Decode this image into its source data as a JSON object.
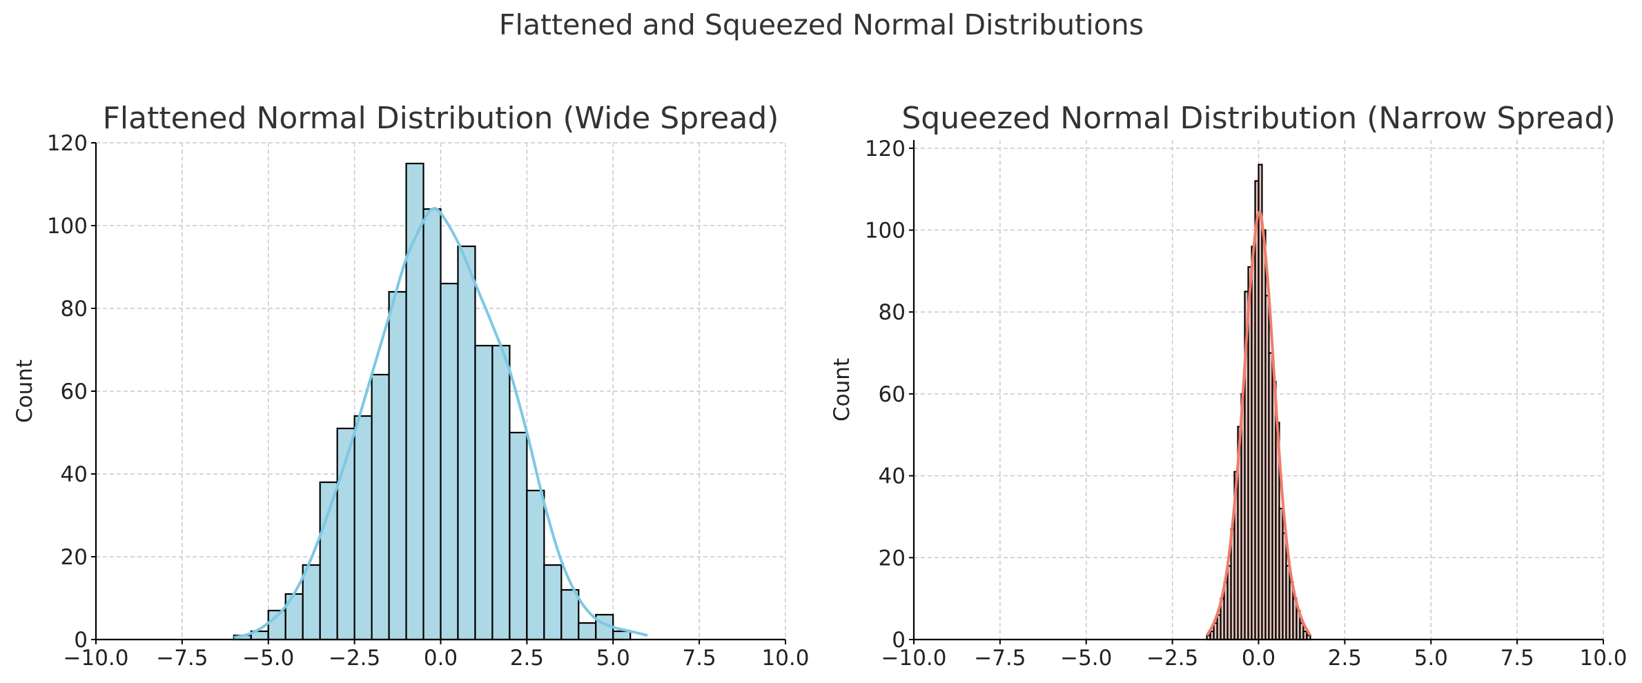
{
  "figure": {
    "suptitle": "Flattened and Squeezed Normal Distributions"
  },
  "chart_data": [
    {
      "type": "bar",
      "subtype": "histogram",
      "title": "Flattened Normal Distribution (Wide Spread)",
      "xlabel": "",
      "ylabel": "Count",
      "xlim": [
        -10,
        10
      ],
      "ylim": [
        0,
        120
      ],
      "xticks": [
        "−10.0",
        "−7.5",
        "−5.0",
        "−2.5",
        "0.0",
        "2.5",
        "5.0",
        "7.5",
        "10.0"
      ],
      "yticks": [
        "0",
        "20",
        "40",
        "60",
        "80",
        "100",
        "120"
      ],
      "grid": true,
      "bar_color": "#add8e6",
      "edge_color": "#000000",
      "kde_color": "#7ec8e3",
      "bins": [
        {
          "x0": -6.0,
          "x1": -5.5,
          "count": 1
        },
        {
          "x0": -5.5,
          "x1": -5.0,
          "count": 2
        },
        {
          "x0": -5.0,
          "x1": -4.5,
          "count": 7
        },
        {
          "x0": -4.5,
          "x1": -4.0,
          "count": 11
        },
        {
          "x0": -4.0,
          "x1": -3.5,
          "count": 18
        },
        {
          "x0": -3.5,
          "x1": -3.0,
          "count": 38
        },
        {
          "x0": -3.0,
          "x1": -2.5,
          "count": 51
        },
        {
          "x0": -2.5,
          "x1": -2.0,
          "count": 54
        },
        {
          "x0": -2.0,
          "x1": -1.5,
          "count": 64
        },
        {
          "x0": -1.5,
          "x1": -1.0,
          "count": 84
        },
        {
          "x0": -1.0,
          "x1": -0.5,
          "count": 115
        },
        {
          "x0": -0.5,
          "x1": 0.0,
          "count": 104
        },
        {
          "x0": 0.0,
          "x1": 0.5,
          "count": 86
        },
        {
          "x0": 0.5,
          "x1": 1.0,
          "count": 95
        },
        {
          "x0": 1.0,
          "x1": 1.5,
          "count": 71
        },
        {
          "x0": 1.5,
          "x1": 2.0,
          "count": 71
        },
        {
          "x0": 2.0,
          "x1": 2.5,
          "count": 50
        },
        {
          "x0": 2.5,
          "x1": 3.0,
          "count": 36
        },
        {
          "x0": 3.0,
          "x1": 3.5,
          "count": 18
        },
        {
          "x0": 3.5,
          "x1": 4.0,
          "count": 12
        },
        {
          "x0": 4.0,
          "x1": 4.5,
          "count": 4
        },
        {
          "x0": 4.5,
          "x1": 5.0,
          "count": 6
        },
        {
          "x0": 5.0,
          "x1": 5.5,
          "count": 2
        }
      ],
      "kde": {
        "x": [
          -6.0,
          -5.5,
          -5.0,
          -4.5,
          -4.0,
          -3.5,
          -3.0,
          -2.5,
          -2.0,
          -1.5,
          -1.0,
          -0.5,
          -0.25,
          0.0,
          0.5,
          1.0,
          1.5,
          2.0,
          2.5,
          3.0,
          3.5,
          4.0,
          4.5,
          5.0,
          5.5,
          6.0
        ],
        "y": [
          0.5,
          1.5,
          4,
          8,
          15,
          25,
          37,
          50,
          64,
          78,
          92,
          101,
          104,
          103,
          96,
          86,
          76,
          65,
          50,
          33,
          19,
          10,
          5,
          3,
          2,
          1
        ]
      }
    },
    {
      "type": "bar",
      "subtype": "histogram",
      "title": "Squeezed Normal Distribution (Narrow Spread)",
      "xlabel": "",
      "ylabel": "Count",
      "xlim": [
        -10,
        10
      ],
      "ylim": [
        0,
        122
      ],
      "xticks": [
        "−10.0",
        "−7.5",
        "−5.0",
        "−2.5",
        "0.0",
        "2.5",
        "5.0",
        "7.5",
        "10.0"
      ],
      "yticks": [
        "0",
        "20",
        "40",
        "60",
        "80",
        "100",
        "120"
      ],
      "grid": true,
      "bar_color": "#e8c4bc",
      "edge_color": "#000000",
      "kde_color": "#f07c6c",
      "bins": [
        {
          "x0": -1.5,
          "x1": -1.4,
          "count": 1
        },
        {
          "x0": -1.4,
          "x1": -1.3,
          "count": 2
        },
        {
          "x0": -1.3,
          "x1": -1.2,
          "count": 4
        },
        {
          "x0": -1.2,
          "x1": -1.1,
          "count": 6
        },
        {
          "x0": -1.1,
          "x1": -1.0,
          "count": 10
        },
        {
          "x0": -1.0,
          "x1": -0.9,
          "count": 14
        },
        {
          "x0": -0.9,
          "x1": -0.8,
          "count": 18
        },
        {
          "x0": -0.8,
          "x1": -0.7,
          "count": 27
        },
        {
          "x0": -0.7,
          "x1": -0.6,
          "count": 41
        },
        {
          "x0": -0.6,
          "x1": -0.5,
          "count": 52
        },
        {
          "x0": -0.5,
          "x1": -0.4,
          "count": 60
        },
        {
          "x0": -0.4,
          "x1": -0.3,
          "count": 85
        },
        {
          "x0": -0.3,
          "x1": -0.2,
          "count": 91
        },
        {
          "x0": -0.2,
          "x1": -0.1,
          "count": 96
        },
        {
          "x0": -0.1,
          "x1": 0.0,
          "count": 112
        },
        {
          "x0": 0.0,
          "x1": 0.1,
          "count": 116
        },
        {
          "x0": 0.1,
          "x1": 0.2,
          "count": 100
        },
        {
          "x0": 0.2,
          "x1": 0.3,
          "count": 84
        },
        {
          "x0": 0.3,
          "x1": 0.4,
          "count": 70
        },
        {
          "x0": 0.4,
          "x1": 0.5,
          "count": 63
        },
        {
          "x0": 0.5,
          "x1": 0.6,
          "count": 53
        },
        {
          "x0": 0.6,
          "x1": 0.7,
          "count": 32
        },
        {
          "x0": 0.7,
          "x1": 0.8,
          "count": 26
        },
        {
          "x0": 0.8,
          "x1": 0.9,
          "count": 18
        },
        {
          "x0": 0.9,
          "x1": 1.0,
          "count": 14
        },
        {
          "x0": 1.0,
          "x1": 1.1,
          "count": 10
        },
        {
          "x0": 1.1,
          "x1": 1.2,
          "count": 7
        },
        {
          "x0": 1.2,
          "x1": 1.3,
          "count": 4
        },
        {
          "x0": 1.3,
          "x1": 1.4,
          "count": 2
        },
        {
          "x0": 1.4,
          "x1": 1.5,
          "count": 1
        }
      ],
      "kde": {
        "x": [
          -1.5,
          -1.3,
          -1.1,
          -0.9,
          -0.7,
          -0.5,
          -0.3,
          -0.1,
          0.0,
          0.1,
          0.3,
          0.5,
          0.7,
          0.9,
          1.1,
          1.3,
          1.5
        ],
        "y": [
          1,
          4,
          9,
          18,
          33,
          54,
          80,
          99,
          104,
          102,
          84,
          58,
          34,
          18,
          9,
          4,
          1
        ]
      }
    }
  ]
}
